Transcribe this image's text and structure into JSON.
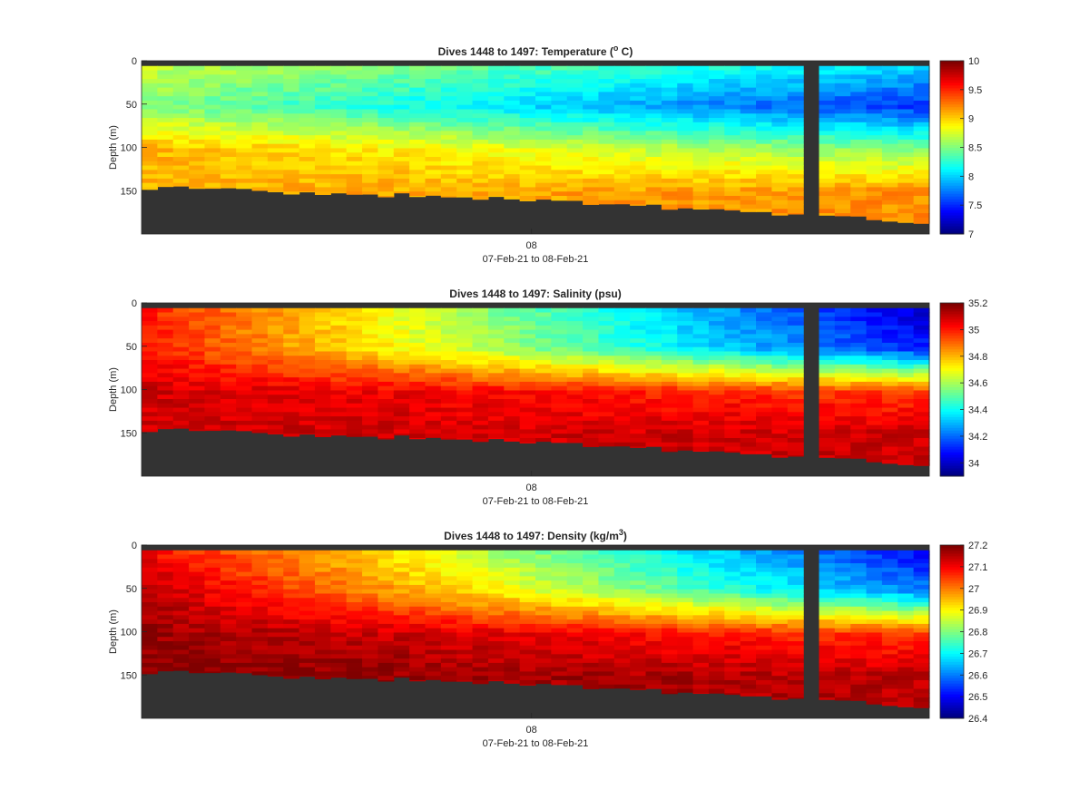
{
  "chart_data": [
    {
      "type": "heatmap",
      "title": {
        "main": "Dives 1448 to 1497: Temperature (",
        "sup": "o",
        "tail": " C)"
      },
      "xlabel": "07-Feb-21 to 08-Feb-21",
      "xticks": [
        "08"
      ],
      "ylabel": "Depth (m)",
      "yticks": [
        0,
        50,
        100,
        150
      ],
      "ylim": [
        0,
        200
      ],
      "y_reversed": true,
      "colorbar": {
        "min": 7,
        "max": 10,
        "ticks": [
          "7",
          "7.5",
          "8",
          "8.5",
          "9",
          "9.5",
          "10"
        ],
        "colormap": "jet"
      },
      "dives": 50,
      "layers": [
        {
          "depth": 5,
          "values": [
            8.7,
            8.0
          ]
        },
        {
          "depth": 50,
          "values": [
            8.5,
            7.5
          ]
        },
        {
          "depth": 100,
          "values": [
            9.1,
            8.5
          ]
        },
        {
          "depth": 150,
          "values": [
            9.1,
            9.2
          ]
        }
      ],
      "bottom_depth_m": [
        146,
        160,
        186
      ]
    },
    {
      "type": "heatmap",
      "title": {
        "main": "Dives 1448 to 1497: Salinity (psu)",
        "sup": "",
        "tail": ""
      },
      "xlabel": "07-Feb-21 to 08-Feb-21",
      "xticks": [
        "08"
      ],
      "ylabel": "Depth (m)",
      "yticks": [
        0,
        50,
        100,
        150
      ],
      "ylim": [
        0,
        200
      ],
      "y_reversed": true,
      "colorbar": {
        "min": 33.9,
        "max": 35.2,
        "ticks": [
          "34",
          "34.2",
          "34.4",
          "34.6",
          "34.8",
          "35",
          "35.2"
        ],
        "colormap": "jet"
      },
      "dives": 50,
      "layers": [
        {
          "depth": 5,
          "values": [
            35.0,
            34.0
          ]
        },
        {
          "depth": 50,
          "values": [
            35.0,
            34.1
          ]
        },
        {
          "depth": 100,
          "values": [
            35.1,
            34.95
          ]
        },
        {
          "depth": 150,
          "values": [
            35.1,
            35.1
          ]
        }
      ],
      "bottom_depth_m": [
        146,
        160,
        186
      ]
    },
    {
      "type": "heatmap",
      "title": {
        "main": "Dives 1448 to 1497: Density (kg/m",
        "sup": "3",
        "tail": ")"
      },
      "xlabel": "07-Feb-21 to 08-Feb-21",
      "xticks": [
        "08"
      ],
      "ylabel": "Depth (m)",
      "yticks": [
        0,
        50,
        100,
        150
      ],
      "ylim": [
        0,
        200
      ],
      "y_reversed": true,
      "colorbar": {
        "min": 26.4,
        "max": 27.2,
        "ticks": [
          "26.4",
          "26.5",
          "26.6",
          "26.7",
          "26.8",
          "26.9",
          "27",
          "27.1",
          "27.2"
        ],
        "colormap": "jet"
      },
      "dives": 50,
      "layers": [
        {
          "depth": 5,
          "values": [
            27.1,
            26.5
          ]
        },
        {
          "depth": 50,
          "values": [
            27.15,
            26.6
          ]
        },
        {
          "depth": 100,
          "values": [
            27.18,
            27.05
          ]
        },
        {
          "depth": 150,
          "values": [
            27.2,
            27.15
          ]
        }
      ],
      "bottom_depth_m": [
        146,
        160,
        186
      ]
    }
  ],
  "colors": {
    "land": "#333333",
    "frame": "#262626",
    "background": "#ffffff"
  }
}
